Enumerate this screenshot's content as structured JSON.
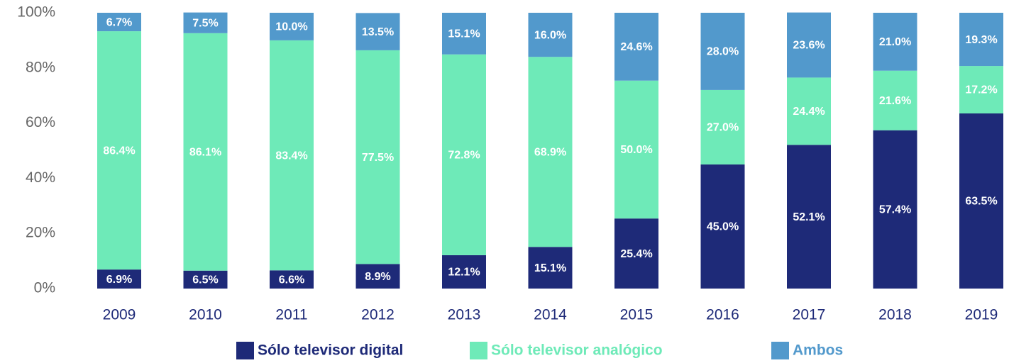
{
  "chart_data": {
    "type": "stacked_bar",
    "categories": [
      "2009",
      "2010",
      "2011",
      "2012",
      "2013",
      "2014",
      "2015",
      "2016",
      "2017",
      "2018",
      "2019"
    ],
    "series": [
      {
        "name": "Sólo televisor digital",
        "color": "#1e2a78",
        "values": [
          6.9,
          6.5,
          6.6,
          8.9,
          12.1,
          15.1,
          25.4,
          45.0,
          52.1,
          57.4,
          63.5
        ],
        "value_labels": [
          "6.9%",
          "6.5%",
          "6.6%",
          "8.9%",
          "12.1%",
          "15.1%",
          "25.4%",
          "45.0%",
          "52.1%",
          "57.4%",
          "63.5%"
        ]
      },
      {
        "name": "Sólo televisor analógico",
        "color": "#6eeab8",
        "values": [
          86.4,
          86.1,
          83.4,
          77.5,
          72.8,
          68.9,
          50.0,
          27.0,
          24.4,
          21.6,
          17.2
        ],
        "value_labels": [
          "86.4%",
          "86.1%",
          "83.4%",
          "77.5%",
          "72.8%",
          "68.9%",
          "50.0%",
          "27.0%",
          "24.4%",
          "21.6%",
          "17.2%"
        ]
      },
      {
        "name": "Ambos",
        "color": "#5299cc",
        "values": [
          6.7,
          7.5,
          10.0,
          13.5,
          15.1,
          16.0,
          24.6,
          28.0,
          23.6,
          21.0,
          19.3
        ],
        "value_labels": [
          "6.7%",
          "7.5%",
          "10.0%",
          "13.5%",
          "15.1%",
          "16.0%",
          "24.6%",
          "28.0%",
          "23.6%",
          "21.0%",
          "19.3%"
        ]
      }
    ],
    "ylim": [
      0,
      100
    ],
    "yticks": [
      {
        "value": 0,
        "label": "0%"
      },
      {
        "value": 20,
        "label": "20%"
      },
      {
        "value": 40,
        "label": "40%"
      },
      {
        "value": 60,
        "label": "60%"
      },
      {
        "value": 80,
        "label": "80%"
      },
      {
        "value": 100,
        "label": "100%"
      }
    ],
    "legend": "bottom"
  }
}
